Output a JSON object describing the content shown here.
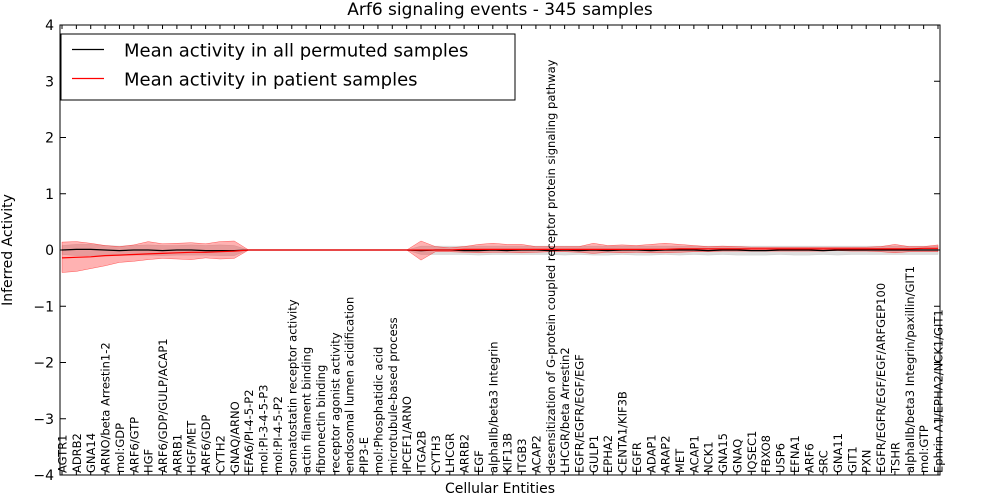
{
  "chart_data": {
    "type": "line",
    "title": "Arf6 signaling events - 345 samples",
    "xlabel": "Cellular Entities",
    "ylabel": "Inferred Activity",
    "ylim": [
      -4,
      4
    ],
    "yticks": [
      "4",
      "3",
      "2",
      "1",
      "0",
      "−1",
      "−2",
      "−3",
      "−4"
    ],
    "grid": false,
    "legend_position": "top-left",
    "categories": [
      "AGTR1",
      "ADRB2",
      "GNA14",
      "ARNO/beta Arrestin1-2",
      "mol:GDP",
      "ARF6/GTP",
      "HGF",
      "ARF6/GDP/GULP/ACAP1",
      "ARRB1",
      "HGF/MET",
      "ARF6/GDP",
      "CYTH2",
      "GNAQ/ARNO",
      "EFA6/PI-4-5-P2",
      "mol:PI-3-4-5-P3",
      "mol:PI-4-5-P2",
      "somatostatin receptor activity",
      "actin filament binding",
      "fibronectin binding",
      "receptor agonist activity",
      "endosomal lumen acidification",
      "PIP3-E",
      "mol:Phosphatidic acid",
      "microtubule-based process",
      "IPCEF1/ARNO",
      "ITGA2B",
      "CYTH3",
      "LHCGR",
      "ARRB2",
      "EGF",
      "alphaIIb/beta3 Integrin",
      "KIF13B",
      "ITGB3",
      "ACAP2",
      "desensitization of G-protein coupled receptor protein signaling pathway",
      "LHCGR/beta Arrestin2",
      "EGFR/EGFR/EGF/EGF",
      "GULP1",
      "EPHA2",
      "CENTA1/KIF3B",
      "EGFR",
      "ADAP1",
      "ARAP2",
      "MET",
      "ACAP1",
      "NCK1",
      "GNA15",
      "GNAQ",
      "IQSEC1",
      "FBXO8",
      "USP6",
      "EFNA1",
      "ARF6",
      "SRC",
      "GNA11",
      "GIT1",
      "PXN",
      "EGFR/EGFR/EGF/EGF/ARFGEP100",
      "TSHR",
      "alphaIIb/beta3 Integrin/paxillin/GIT1",
      "mol:GTP",
      "Ephrin A1/EPHA2/NCK1/GIT1"
    ],
    "series": [
      {
        "name": "Mean activity in all permuted samples",
        "color": "#000000",
        "band_color": "#bdbdbd",
        "values": [
          0.0,
          0.01,
          0.01,
          0.0,
          -0.01,
          0.0,
          0.0,
          -0.01,
          0.0,
          0.0,
          -0.01,
          -0.01,
          -0.01,
          0,
          0,
          0,
          0,
          0,
          0,
          0,
          0,
          0,
          0,
          0,
          0,
          -0.01,
          0.0,
          0.0,
          -0.01,
          -0.01,
          0.0,
          -0.01,
          0.0,
          0.0,
          -0.01,
          0.0,
          -0.01,
          0.0,
          -0.01,
          0.0,
          0.0,
          -0.01,
          0.0,
          0.0,
          0.0,
          -0.01,
          0.0,
          0.0,
          -0.01,
          -0.01,
          0.0,
          0.0,
          0.0,
          -0.01,
          0.0,
          0.0,
          0.0,
          0.0,
          0.0,
          0.0,
          0.0,
          0.0
        ],
        "upper": [
          0.08,
          0.1,
          0.1,
          0.08,
          0.07,
          0.08,
          0.09,
          0.08,
          0.08,
          0.09,
          0.08,
          0.09,
          0.08,
          0,
          0,
          0,
          0,
          0,
          0,
          0,
          0,
          0,
          0,
          0,
          0,
          0.07,
          0.07,
          0.07,
          0.07,
          0.07,
          0.07,
          0.07,
          0.07,
          0.07,
          0.07,
          0.07,
          0.07,
          0.07,
          0.07,
          0.07,
          0.07,
          0.07,
          0.07,
          0.07,
          0.07,
          0.07,
          0.07,
          0.07,
          0.07,
          0.07,
          0.07,
          0.07,
          0.07,
          0.07,
          0.07,
          0.07,
          0.07,
          0.07,
          0.07,
          0.07,
          0.07,
          0.07
        ],
        "lower": [
          -0.08,
          -0.1,
          -0.1,
          -0.1,
          -0.09,
          -0.09,
          -0.09,
          -0.1,
          -0.09,
          -0.09,
          -0.09,
          -0.1,
          -0.1,
          0,
          0,
          0,
          0,
          0,
          0,
          0,
          0,
          0,
          0,
          0,
          0,
          -0.08,
          -0.08,
          -0.08,
          -0.08,
          -0.09,
          -0.08,
          -0.08,
          -0.08,
          -0.08,
          -0.08,
          -0.09,
          -0.08,
          -0.09,
          -0.09,
          -0.08,
          -0.09,
          -0.09,
          -0.08,
          -0.09,
          -0.08,
          -0.09,
          -0.08,
          -0.09,
          -0.09,
          -0.09,
          -0.08,
          -0.09,
          -0.09,
          -0.08,
          -0.09,
          -0.08,
          -0.08,
          -0.08,
          -0.08,
          -0.08,
          -0.08,
          -0.08
        ]
      },
      {
        "name": "Mean activity in patient samples",
        "color": "#ff0000",
        "band_color": "#ff0000",
        "values": [
          -0.14,
          -0.13,
          -0.12,
          -0.1,
          -0.09,
          -0.08,
          -0.07,
          -0.06,
          -0.05,
          -0.04,
          -0.04,
          -0.03,
          -0.02,
          0,
          0,
          0,
          0,
          0,
          0,
          0,
          0,
          0,
          0,
          0,
          0,
          0.0,
          0.0,
          0.0,
          0.01,
          0.01,
          0.01,
          0.01,
          0.01,
          0.01,
          0.01,
          0.01,
          0.01,
          0.01,
          0.01,
          0.01,
          0.01,
          0.01,
          0.01,
          0.02,
          0.02,
          0.02,
          0.02,
          0.02,
          0.02,
          0.02,
          0.02,
          0.02,
          0.02,
          0.02,
          0.02,
          0.02,
          0.02,
          0.02,
          0.02,
          0.02,
          0.03,
          0.03
        ],
        "upper": [
          0.14,
          0.15,
          0.12,
          0.08,
          0.06,
          0.09,
          0.15,
          0.11,
          0.12,
          0.13,
          0.11,
          0.15,
          0.16,
          0,
          0,
          0,
          0,
          0,
          0,
          0,
          0,
          0,
          0,
          0,
          0,
          0.16,
          0.06,
          0.04,
          0.06,
          0.1,
          0.12,
          0.1,
          0.1,
          0.06,
          0.06,
          0.06,
          0.06,
          0.12,
          0.08,
          0.09,
          0.08,
          0.1,
          0.12,
          0.1,
          0.08,
          0.06,
          0.07,
          0.06,
          0.05,
          0.05,
          0.05,
          0.05,
          0.05,
          0.05,
          0.05,
          0.05,
          0.05,
          0.06,
          0.1,
          0.06,
          0.06,
          0.09
        ],
        "lower": [
          -0.4,
          -0.38,
          -0.33,
          -0.28,
          -0.22,
          -0.2,
          -0.17,
          -0.15,
          -0.16,
          -0.17,
          -0.14,
          -0.16,
          -0.15,
          0,
          0,
          0,
          0,
          0,
          0,
          0,
          0,
          0,
          0,
          0,
          0,
          -0.18,
          -0.03,
          -0.03,
          -0.04,
          -0.05,
          -0.04,
          -0.04,
          -0.05,
          -0.04,
          -0.03,
          -0.03,
          -0.04,
          -0.06,
          -0.04,
          -0.05,
          -0.04,
          -0.05,
          -0.05,
          -0.04,
          -0.03,
          -0.03,
          -0.02,
          -0.02,
          -0.02,
          -0.02,
          -0.02,
          -0.02,
          -0.02,
          -0.02,
          -0.01,
          -0.02,
          -0.02,
          -0.03,
          -0.05,
          -0.03,
          -0.03,
          -0.03
        ]
      }
    ]
  }
}
